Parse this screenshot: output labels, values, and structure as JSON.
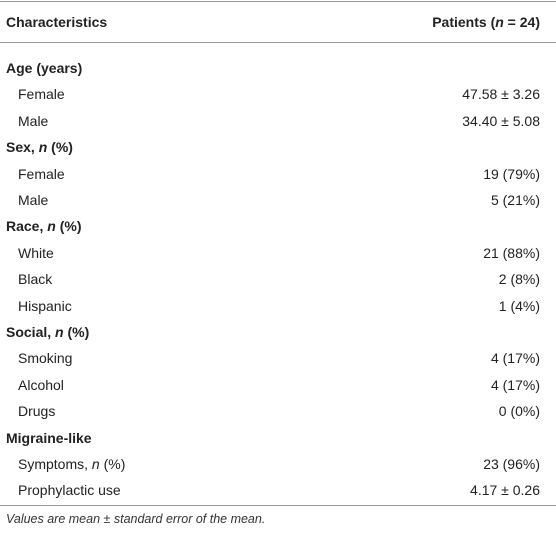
{
  "table": {
    "header": [
      [
        "Characteristics"
      ],
      [
        "Patients (",
        "n",
        " = 24)"
      ]
    ],
    "groups": [
      {
        "label": [
          "Age (years)"
        ],
        "items": [
          {
            "label": [
              "Female"
            ],
            "value": "47.58 ± 3.26"
          },
          {
            "label": [
              "Male"
            ],
            "value": "34.40 ± 5.08"
          }
        ]
      },
      {
        "label": [
          "Sex, ",
          "n",
          " (%)"
        ],
        "items": [
          {
            "label": [
              "Female"
            ],
            "value": "19 (79%)"
          },
          {
            "label": [
              "Male"
            ],
            "value": "5 (21%)"
          }
        ]
      },
      {
        "label": [
          "Race, ",
          "n",
          " (%)"
        ],
        "items": [
          {
            "label": [
              "White"
            ],
            "value": "21 (88%)"
          },
          {
            "label": [
              "Black"
            ],
            "value": "2 (8%)"
          },
          {
            "label": [
              "Hispanic"
            ],
            "value": "1 (4%)"
          }
        ]
      },
      {
        "label": [
          "Social, ",
          "n",
          " (%)"
        ],
        "items": [
          {
            "label": [
              "Smoking"
            ],
            "value": "4 (17%)"
          },
          {
            "label": [
              "Alcohol"
            ],
            "value": "4 (17%)"
          },
          {
            "label": [
              "Drugs"
            ],
            "value": "0 (0%)"
          }
        ]
      },
      {
        "label": [
          "Migraine-like"
        ],
        "items": [
          {
            "label": [
              "Symptoms, ",
              "n",
              " (%)"
            ],
            "value": "23 (96%)"
          },
          {
            "label": [
              "Prophylactic use"
            ],
            "value": "4.17 ± 0.26"
          }
        ]
      }
    ],
    "footnote": "Values are mean ± standard error of the mean."
  }
}
